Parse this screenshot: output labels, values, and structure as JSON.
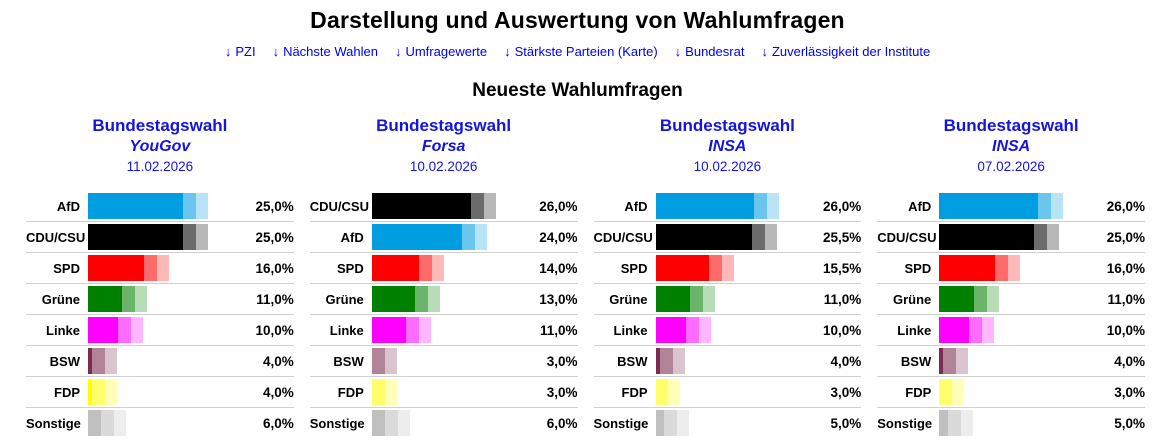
{
  "page": {
    "title": "Darstellung und Auswertung von Wahlumfragen",
    "section_title": "Neueste Wahlumfragen"
  },
  "nav": {
    "arrow": "↓",
    "links": [
      {
        "label": "PZI"
      },
      {
        "label": "Nächste Wahlen"
      },
      {
        "label": "Umfragewerte"
      },
      {
        "label": "Stärkste Parteien (Karte)"
      },
      {
        "label": "Bundesrat"
      },
      {
        "label": "Zuverlässigkeit der Institute"
      }
    ]
  },
  "colors": {
    "link_blue": "#0000EE",
    "chart_header_blue": "#1414E0",
    "row_separator": "#D0D0D0",
    "parties": {
      "AfD": "#009EE0",
      "CDU/CSU": "#000000",
      "SPD": "#FF0000",
      "Grüne": "#008000",
      "Linke": "#FF00FF",
      "BSW": "#7B2C4F",
      "FDP": "#FFFF00",
      "Sonstige": "#C0C0C0"
    }
  },
  "chart_data": [
    {
      "type": "bar",
      "title": "Bundestagswahl",
      "institute": "YouGov",
      "date": "11.02.2026",
      "orientation": "horizontal",
      "xlim": [
        0,
        29
      ],
      "grid": false,
      "legend": false,
      "categories": [
        "AfD",
        "CDU/CSU",
        "SPD",
        "Grüne",
        "Linke",
        "BSW",
        "FDP",
        "Sonstige"
      ],
      "values": [
        25.0,
        25.0,
        16.0,
        11.0,
        10.0,
        4.0,
        4.0,
        6.0
      ],
      "value_labels": [
        "25,0%",
        "25,0%",
        "16,0%",
        "11,0%",
        "10,0%",
        "4,0%",
        "4,0%",
        "6,0%"
      ]
    },
    {
      "type": "bar",
      "title": "Bundestagswahl",
      "institute": "Forsa",
      "date": "10.02.2026",
      "orientation": "horizontal",
      "xlim": [
        0,
        29
      ],
      "grid": false,
      "legend": false,
      "categories": [
        "CDU/CSU",
        "AfD",
        "SPD",
        "Grüne",
        "Linke",
        "BSW",
        "FDP",
        "Sonstige"
      ],
      "values": [
        26.0,
        24.0,
        14.0,
        13.0,
        11.0,
        3.0,
        3.0,
        6.0
      ],
      "value_labels": [
        "26,0%",
        "24,0%",
        "14,0%",
        "13,0%",
        "11,0%",
        "3,0%",
        "3,0%",
        "6,0%"
      ]
    },
    {
      "type": "bar",
      "title": "Bundestagswahl",
      "institute": "INSA",
      "date": "10.02.2026",
      "orientation": "horizontal",
      "xlim": [
        0,
        29
      ],
      "grid": false,
      "legend": false,
      "categories": [
        "AfD",
        "CDU/CSU",
        "SPD",
        "Grüne",
        "Linke",
        "BSW",
        "FDP",
        "Sonstige"
      ],
      "values": [
        26.0,
        25.5,
        15.5,
        11.0,
        10.0,
        4.0,
        3.0,
        5.0
      ],
      "value_labels": [
        "26,0%",
        "25,5%",
        "15,5%",
        "11,0%",
        "10,0%",
        "4,0%",
        "3,0%",
        "5,0%"
      ]
    },
    {
      "type": "bar",
      "title": "Bundestagswahl",
      "institute": "INSA",
      "date": "07.02.2026",
      "orientation": "horizontal",
      "xlim": [
        0,
        29
      ],
      "grid": false,
      "legend": false,
      "categories": [
        "AfD",
        "CDU/CSU",
        "SPD",
        "Grüne",
        "Linke",
        "BSW",
        "FDP",
        "Sonstige"
      ],
      "values": [
        26.0,
        25.0,
        16.0,
        11.0,
        10.0,
        4.0,
        3.0,
        5.0
      ],
      "value_labels": [
        "26,0%",
        "25,0%",
        "16,0%",
        "11,0%",
        "10,0%",
        "4,0%",
        "3,0%",
        "5,0%"
      ]
    }
  ]
}
